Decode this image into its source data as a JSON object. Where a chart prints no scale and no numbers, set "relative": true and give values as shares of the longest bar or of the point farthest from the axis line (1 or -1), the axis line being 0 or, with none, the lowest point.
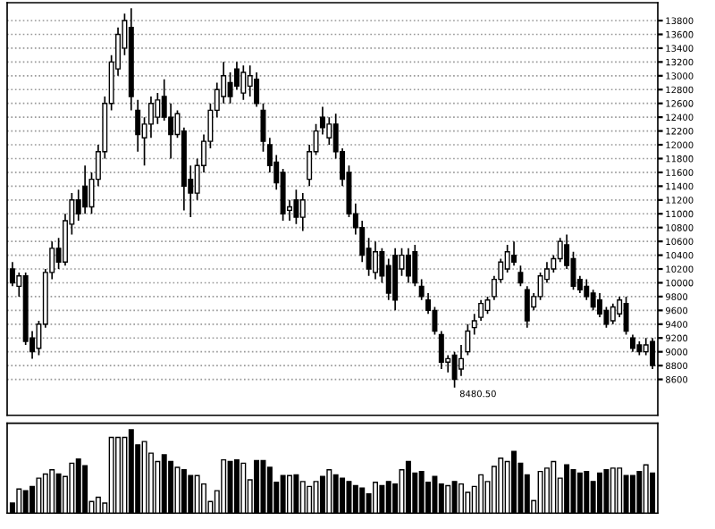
{
  "chart_data": [
    {
      "type": "candlestick",
      "categories": [
        null,
        null,
        null,
        null,
        null,
        null,
        null,
        null,
        null,
        null,
        null,
        null,
        null,
        null,
        null,
        null,
        null,
        null,
        null,
        null,
        null,
        null,
        null,
        null,
        null,
        null,
        null,
        null,
        null,
        null,
        null,
        null,
        null,
        null,
        null,
        null,
        null,
        null,
        null,
        null,
        null,
        null,
        null,
        null,
        null,
        null,
        null,
        null,
        null,
        null,
        null,
        null,
        null,
        null,
        null,
        null,
        null,
        null,
        null,
        null,
        null,
        null,
        null,
        null,
        null,
        null,
        null,
        null,
        null,
        null,
        null,
        null,
        null,
        null,
        null,
        null,
        null,
        null,
        null,
        null,
        null,
        null,
        null,
        null,
        null,
        null,
        null,
        null,
        null,
        null,
        null,
        null,
        null,
        null,
        null,
        null,
        null,
        null
      ],
      "ohlc": [
        [
          10200,
          10300,
          9950,
          10000
        ],
        [
          9950,
          10150,
          9800,
          10100
        ],
        [
          10100,
          10150,
          9100,
          9150
        ],
        [
          9200,
          9300,
          8900,
          9000
        ],
        [
          9050,
          9450,
          8950,
          9400
        ],
        [
          9400,
          10200,
          9350,
          10150
        ],
        [
          10150,
          10600,
          10050,
          10500
        ],
        [
          10500,
          10650,
          10200,
          10300
        ],
        [
          10300,
          11000,
          10250,
          10900
        ],
        [
          10850,
          11300,
          10700,
          11200
        ],
        [
          11200,
          11350,
          10900,
          11000
        ],
        [
          11400,
          11700,
          11000,
          11100
        ],
        [
          11100,
          11600,
          11000,
          11500
        ],
        [
          11500,
          12000,
          11400,
          11900
        ],
        [
          11900,
          12700,
          11800,
          12600
        ],
        [
          12600,
          13300,
          12500,
          13200
        ],
        [
          13100,
          13700,
          13000,
          13600
        ],
        [
          13400,
          13900,
          13300,
          13800
        ],
        [
          13700,
          13980,
          12500,
          12700
        ],
        [
          12500,
          12650,
          11900,
          12150
        ],
        [
          12100,
          12400,
          11700,
          12300
        ],
        [
          12300,
          12700,
          12100,
          12600
        ],
        [
          12400,
          12750,
          12300,
          12650
        ],
        [
          12700,
          12950,
          12350,
          12400
        ],
        [
          12400,
          12600,
          11800,
          12150
        ],
        [
          12150,
          12500,
          12100,
          12450
        ],
        [
          12200,
          12250,
          11050,
          11400
        ],
        [
          11500,
          11700,
          10950,
          11300
        ],
        [
          11300,
          11800,
          11200,
          11700
        ],
        [
          11700,
          12150,
          11600,
          12050
        ],
        [
          12050,
          12600,
          11950,
          12500
        ],
        [
          12500,
          12900,
          12400,
          12800
        ],
        [
          12700,
          13200,
          12600,
          13000
        ],
        [
          12900,
          13050,
          12600,
          12700
        ],
        [
          13100,
          13200,
          12800,
          12850
        ],
        [
          12750,
          13150,
          12650,
          13050
        ],
        [
          12850,
          13150,
          12700,
          13000
        ],
        [
          12950,
          13050,
          12550,
          12600
        ],
        [
          12500,
          12600,
          11900,
          12050
        ],
        [
          12000,
          12100,
          11600,
          11700
        ],
        [
          11750,
          11850,
          11350,
          11450
        ],
        [
          11600,
          11650,
          10900,
          11000
        ],
        [
          11050,
          11200,
          10900,
          11100
        ],
        [
          11200,
          11350,
          10850,
          10950
        ],
        [
          10950,
          11300,
          10750,
          11200
        ],
        [
          11500,
          12000,
          11400,
          11900
        ],
        [
          11900,
          12300,
          11850,
          12200
        ],
        [
          12400,
          12550,
          12150,
          12250
        ],
        [
          12100,
          12400,
          12000,
          12300
        ],
        [
          12300,
          12450,
          11800,
          11900
        ],
        [
          11900,
          11950,
          11400,
          11500
        ],
        [
          11600,
          11700,
          10950,
          11000
        ],
        [
          11000,
          11150,
          10700,
          10800
        ],
        [
          10800,
          10900,
          10300,
          10400
        ],
        [
          10500,
          10650,
          10100,
          10200
        ],
        [
          10150,
          10600,
          10050,
          10450
        ],
        [
          10450,
          10500,
          10000,
          10100
        ],
        [
          10250,
          10350,
          9750,
          9850
        ],
        [
          10400,
          10500,
          9600,
          9750
        ],
        [
          10200,
          10500,
          10100,
          10400
        ],
        [
          10400,
          10500,
          10000,
          10100
        ],
        [
          10450,
          10550,
          9950,
          10000
        ],
        [
          9950,
          10050,
          9750,
          9800
        ],
        [
          9750,
          9850,
          9550,
          9600
        ],
        [
          9600,
          9650,
          9250,
          9300
        ],
        [
          9250,
          9300,
          8750,
          8850
        ],
        [
          8850,
          8950,
          8700,
          8900
        ],
        [
          8950,
          9000,
          8480.5,
          8600
        ],
        [
          8750,
          9100,
          8650,
          8900
        ],
        [
          9000,
          9400,
          8950,
          9300
        ],
        [
          9350,
          9550,
          9250,
          9450
        ],
        [
          9500,
          9750,
          9450,
          9700
        ],
        [
          9600,
          9800,
          9550,
          9750
        ],
        [
          9800,
          10100,
          9750,
          10050
        ],
        [
          10050,
          10350,
          10000,
          10300
        ],
        [
          10200,
          10550,
          10150,
          10450
        ],
        [
          10400,
          10600,
          10250,
          10300
        ],
        [
          10150,
          10250,
          9950,
          10000
        ],
        [
          9900,
          9950,
          9350,
          9450
        ],
        [
          9650,
          9850,
          9600,
          9800
        ],
        [
          9800,
          10150,
          9750,
          10100
        ],
        [
          10050,
          10300,
          10000,
          10200
        ],
        [
          10200,
          10400,
          10150,
          10350
        ],
        [
          10350,
          10650,
          10300,
          10600
        ],
        [
          10550,
          10700,
          10200,
          10250
        ],
        [
          10350,
          10450,
          9900,
          9950
        ],
        [
          10050,
          10100,
          9850,
          9900
        ],
        [
          9950,
          10050,
          9750,
          9800
        ],
        [
          9850,
          9900,
          9600,
          9650
        ],
        [
          9750,
          9850,
          9500,
          9550
        ],
        [
          9600,
          9650,
          9350,
          9400
        ],
        [
          9450,
          9700,
          9400,
          9650
        ],
        [
          9550,
          9800,
          9500,
          9750
        ],
        [
          9700,
          9800,
          9250,
          9300
        ],
        [
          9200,
          9250,
          9000,
          9050
        ],
        [
          9100,
          9150,
          8950,
          9000
        ],
        [
          9000,
          9200,
          8950,
          9100
        ],
        [
          9150,
          9200,
          8750,
          8800
        ]
      ],
      "ylim": [
        8080,
        14060
      ],
      "yticks": [
        8600,
        8800,
        9000,
        9200,
        9400,
        9600,
        9800,
        10000,
        10200,
        10400,
        10600,
        10800,
        11000,
        11200,
        11400,
        11600,
        11800,
        12000,
        12200,
        12400,
        12600,
        12800,
        13000,
        13200,
        13400,
        13600,
        13800
      ],
      "grid": "y",
      "tick_labels": "y",
      "annotations": [
        "8480.50"
      ]
    },
    {
      "type": "bar",
      "relative": true,
      "tick_labels": false,
      "categories": [
        null,
        null,
        null,
        null,
        null,
        null,
        null,
        null,
        null,
        null,
        null,
        null,
        null,
        null,
        null,
        null,
        null,
        null,
        null,
        null,
        null,
        null,
        null,
        null,
        null,
        null,
        null,
        null,
        null,
        null,
        null,
        null,
        null,
        null,
        null,
        null,
        null,
        null,
        null,
        null,
        null,
        null,
        null,
        null,
        null,
        null,
        null,
        null,
        null,
        null,
        null,
        null,
        null,
        null,
        null,
        null,
        null,
        null,
        null,
        null,
        null,
        null,
        null,
        null,
        null,
        null,
        null,
        null,
        null,
        null,
        null,
        null,
        null,
        null,
        null,
        null,
        null,
        null,
        null,
        null,
        null,
        null,
        null,
        null,
        null,
        null,
        null,
        null,
        null,
        null,
        null,
        null,
        null,
        null,
        null,
        null,
        null,
        null
      ],
      "values": [
        0.12,
        0.29,
        0.27,
        0.32,
        0.42,
        0.47,
        0.52,
        0.47,
        0.44,
        0.6,
        0.65,
        0.57,
        0.14,
        0.19,
        0.12,
        0.91,
        0.91,
        0.91,
        1.0,
        0.82,
        0.86,
        0.72,
        0.62,
        0.7,
        0.62,
        0.55,
        0.52,
        0.45,
        0.45,
        0.35,
        0.14,
        0.27,
        0.64,
        0.62,
        0.64,
        0.6,
        0.4,
        0.63,
        0.63,
        0.55,
        0.37,
        0.45,
        0.45,
        0.46,
        0.38,
        0.32,
        0.38,
        0.44,
        0.52,
        0.46,
        0.42,
        0.38,
        0.33,
        0.3,
        0.23,
        0.37,
        0.33,
        0.38,
        0.35,
        0.52,
        0.62,
        0.48,
        0.5,
        0.37,
        0.44,
        0.35,
        0.33,
        0.38,
        0.35,
        0.25,
        0.32,
        0.46,
        0.38,
        0.56,
        0.66,
        0.62,
        0.74,
        0.6,
        0.46,
        0.15,
        0.5,
        0.54,
        0.62,
        0.42,
        0.58,
        0.52,
        0.48,
        0.5,
        0.38,
        0.48,
        0.52,
        0.54,
        0.54,
        0.45,
        0.45,
        0.5,
        0.58,
        0.48
      ],
      "colors": [
        "#000000",
        "#ffffff",
        "#000000",
        "#000000",
        "#ffffff",
        "#ffffff",
        "#ffffff",
        "#000000",
        "#ffffff",
        "#ffffff",
        "#000000",
        "#000000",
        "#ffffff",
        "#ffffff",
        "#ffffff",
        "#ffffff",
        "#ffffff",
        "#ffffff",
        "#000000",
        "#000000",
        "#ffffff",
        "#ffffff",
        "#ffffff",
        "#000000",
        "#000000",
        "#ffffff",
        "#000000",
        "#000000",
        "#ffffff",
        "#ffffff",
        "#ffffff",
        "#ffffff",
        "#ffffff",
        "#000000",
        "#000000",
        "#ffffff",
        "#ffffff",
        "#000000",
        "#000000",
        "#000000",
        "#000000",
        "#000000",
        "#ffffff",
        "#000000",
        "#ffffff",
        "#ffffff",
        "#ffffff",
        "#000000",
        "#ffffff",
        "#000000",
        "#000000",
        "#000000",
        "#000000",
        "#000000",
        "#000000",
        "#ffffff",
        "#000000",
        "#000000",
        "#000000",
        "#ffffff",
        "#000000",
        "#000000",
        "#000000",
        "#000000",
        "#000000",
        "#000000",
        "#ffffff",
        "#000000",
        "#ffffff",
        "#ffffff",
        "#ffffff",
        "#ffffff",
        "#ffffff",
        "#ffffff",
        "#ffffff",
        "#ffffff",
        "#000000",
        "#000000",
        "#000000",
        "#ffffff",
        "#ffffff",
        "#ffffff",
        "#ffffff",
        "#ffffff",
        "#000000",
        "#000000",
        "#000000",
        "#000000",
        "#000000",
        "#000000",
        "#000000",
        "#ffffff",
        "#ffffff",
        "#000000",
        "#000000",
        "#000000",
        "#ffffff",
        "#000000"
      ]
    }
  ]
}
